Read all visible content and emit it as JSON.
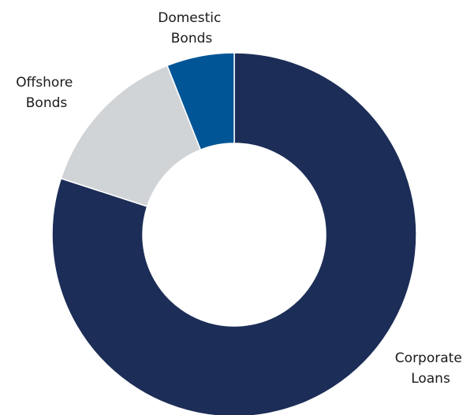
{
  "chart_data": {
    "type": "pie",
    "donut": true,
    "title": "",
    "legend": "none",
    "slices": [
      {
        "label": [
          "Corporate",
          "Loans"
        ],
        "value": 80,
        "color": "#1c2d57"
      },
      {
        "label": [
          "Offshore",
          "Bonds"
        ],
        "value": 14,
        "color": "#d1d4d7"
      },
      {
        "label": [
          "Domestic",
          "Bonds"
        ],
        "value": 6,
        "color": "#005596"
      }
    ]
  }
}
